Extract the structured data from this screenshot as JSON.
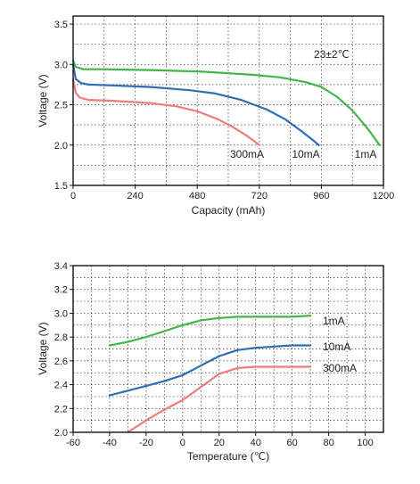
{
  "chart_data": [
    {
      "type": "line",
      "title": "",
      "xlabel": "Capacity (mAh)",
      "ylabel": "Voltage (V)",
      "xlim": [
        0,
        1200
      ],
      "ylim": [
        1.5,
        3.6
      ],
      "xticks": [
        0,
        240,
        480,
        720,
        960,
        1200
      ],
      "yticks": [
        1.5,
        2.0,
        2.5,
        3.0,
        3.5
      ],
      "ytick_labels": [
        "1.5",
        "2.0",
        "2.5",
        "3.0",
        "3.5"
      ],
      "grid": true,
      "annotation": "23±2℃",
      "series": [
        {
          "name": "1mA",
          "color": "#44b648",
          "x": [
            0,
            10,
            40,
            120,
            300,
            500,
            700,
            800,
            900,
            960,
            1020,
            1080,
            1140,
            1185
          ],
          "y": [
            3.05,
            2.97,
            2.94,
            2.94,
            2.93,
            2.91,
            2.87,
            2.84,
            2.78,
            2.72,
            2.6,
            2.43,
            2.2,
            2.0
          ]
        },
        {
          "name": "10mA",
          "color": "#2f6db5",
          "x": [
            0,
            10,
            30,
            60,
            150,
            300,
            450,
            550,
            650,
            750,
            820,
            880,
            920,
            950
          ],
          "y": [
            3.0,
            2.82,
            2.77,
            2.75,
            2.74,
            2.72,
            2.68,
            2.64,
            2.56,
            2.44,
            2.32,
            2.18,
            2.08,
            2.0
          ]
        },
        {
          "name": "300mA",
          "color": "#ef7b7b",
          "x": [
            0,
            10,
            25,
            60,
            150,
            300,
            400,
            480,
            560,
            620,
            670,
            720
          ],
          "y": [
            2.82,
            2.65,
            2.59,
            2.56,
            2.55,
            2.52,
            2.48,
            2.42,
            2.32,
            2.22,
            2.12,
            2.0
          ]
        }
      ]
    },
    {
      "type": "line",
      "title": "",
      "xlabel": "Temperature (℃)",
      "ylabel": "Voltage (V)",
      "xlim": [
        -60,
        110
      ],
      "ylim": [
        2.0,
        3.4
      ],
      "xticks": [
        -60,
        -40,
        -20,
        0,
        20,
        40,
        60,
        80,
        100
      ],
      "yticks": [
        2.0,
        2.2,
        2.4,
        2.6,
        2.8,
        3.0,
        3.2,
        3.4
      ],
      "ytick_labels": [
        "2.0",
        "2.2",
        "2.4",
        "2.6",
        "2.8",
        "3.0",
        "3.2",
        "3.4"
      ],
      "grid": true,
      "series": [
        {
          "name": "1mA",
          "color": "#44b648",
          "x": [
            -40,
            -30,
            -20,
            -10,
            0,
            10,
            20,
            30,
            40,
            50,
            60,
            70
          ],
          "y": [
            2.73,
            2.76,
            2.8,
            2.85,
            2.9,
            2.94,
            2.96,
            2.97,
            2.97,
            2.97,
            2.97,
            2.98
          ]
        },
        {
          "name": "10mA",
          "color": "#2f6db5",
          "x": [
            -40,
            -30,
            -20,
            -10,
            0,
            10,
            20,
            30,
            40,
            50,
            60,
            70
          ],
          "y": [
            2.31,
            2.35,
            2.39,
            2.43,
            2.48,
            2.56,
            2.64,
            2.69,
            2.71,
            2.72,
            2.73,
            2.73
          ]
        },
        {
          "name": "300mA",
          "color": "#ef7b7b",
          "x": [
            -30,
            -20,
            -10,
            0,
            10,
            20,
            30,
            40,
            50,
            60,
            70
          ],
          "y": [
            2.0,
            2.1,
            2.19,
            2.27,
            2.38,
            2.49,
            2.54,
            2.55,
            2.55,
            2.55,
            2.55
          ]
        }
      ]
    }
  ]
}
